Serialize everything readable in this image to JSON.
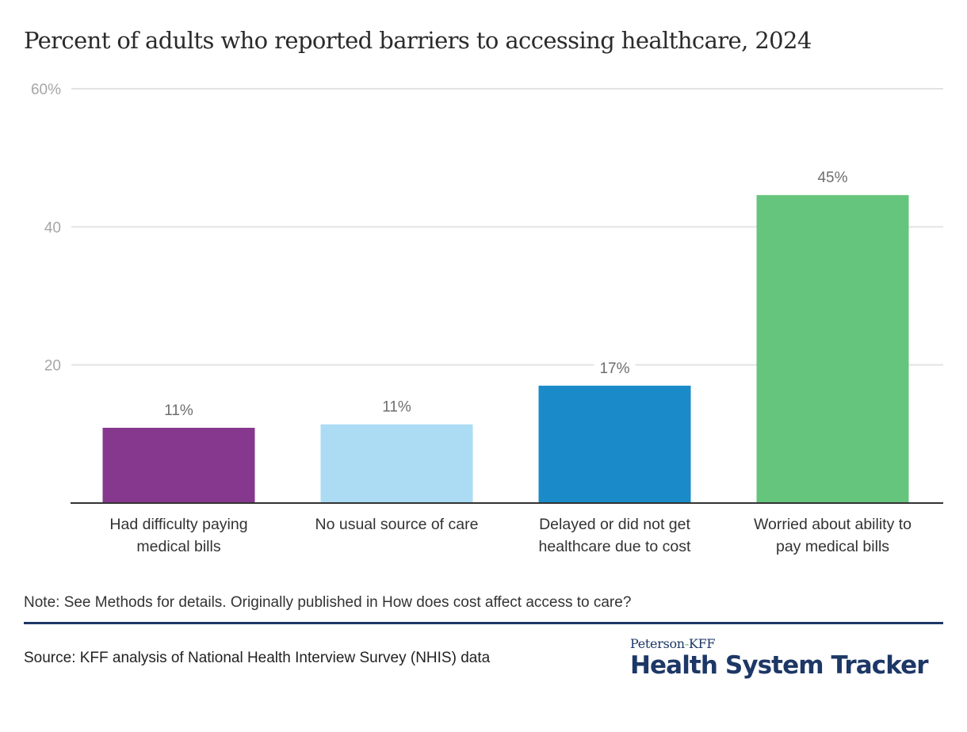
{
  "chart_data": {
    "type": "bar",
    "title": "Percent of adults who reported barriers to accessing healthcare, 2024",
    "xlabel": "",
    "ylabel": "",
    "ylim": [
      0,
      60
    ],
    "yticks": [
      0,
      20,
      40,
      60
    ],
    "ytick_labels": [
      "",
      "20",
      "40",
      "60%"
    ],
    "grid": true,
    "categories": [
      [
        "Had difficulty paying",
        "medical bills"
      ],
      [
        "No usual source of care"
      ],
      [
        "Delayed or did not get",
        "healthcare due to cost"
      ],
      [
        "Worried about ability to",
        "pay medical bills"
      ]
    ],
    "values": [
      10.9,
      11.4,
      17.0,
      44.6
    ],
    "data_labels": [
      "11%",
      "11%",
      "17%",
      "45%"
    ],
    "colors": [
      "#86388e",
      "#abdcf4",
      "#1a8ac9",
      "#66c57c"
    ]
  },
  "footer": {
    "note": "Note: See Methods for details. Originally published in How does cost affect access to care?",
    "source": "Source: KFF analysis of National Health Interview Survey (NHIS) data"
  },
  "logo": {
    "top_part1": "Peterson",
    "top_hyphen": "-",
    "top_part2": "KFF",
    "main": "Health System Tracker"
  }
}
